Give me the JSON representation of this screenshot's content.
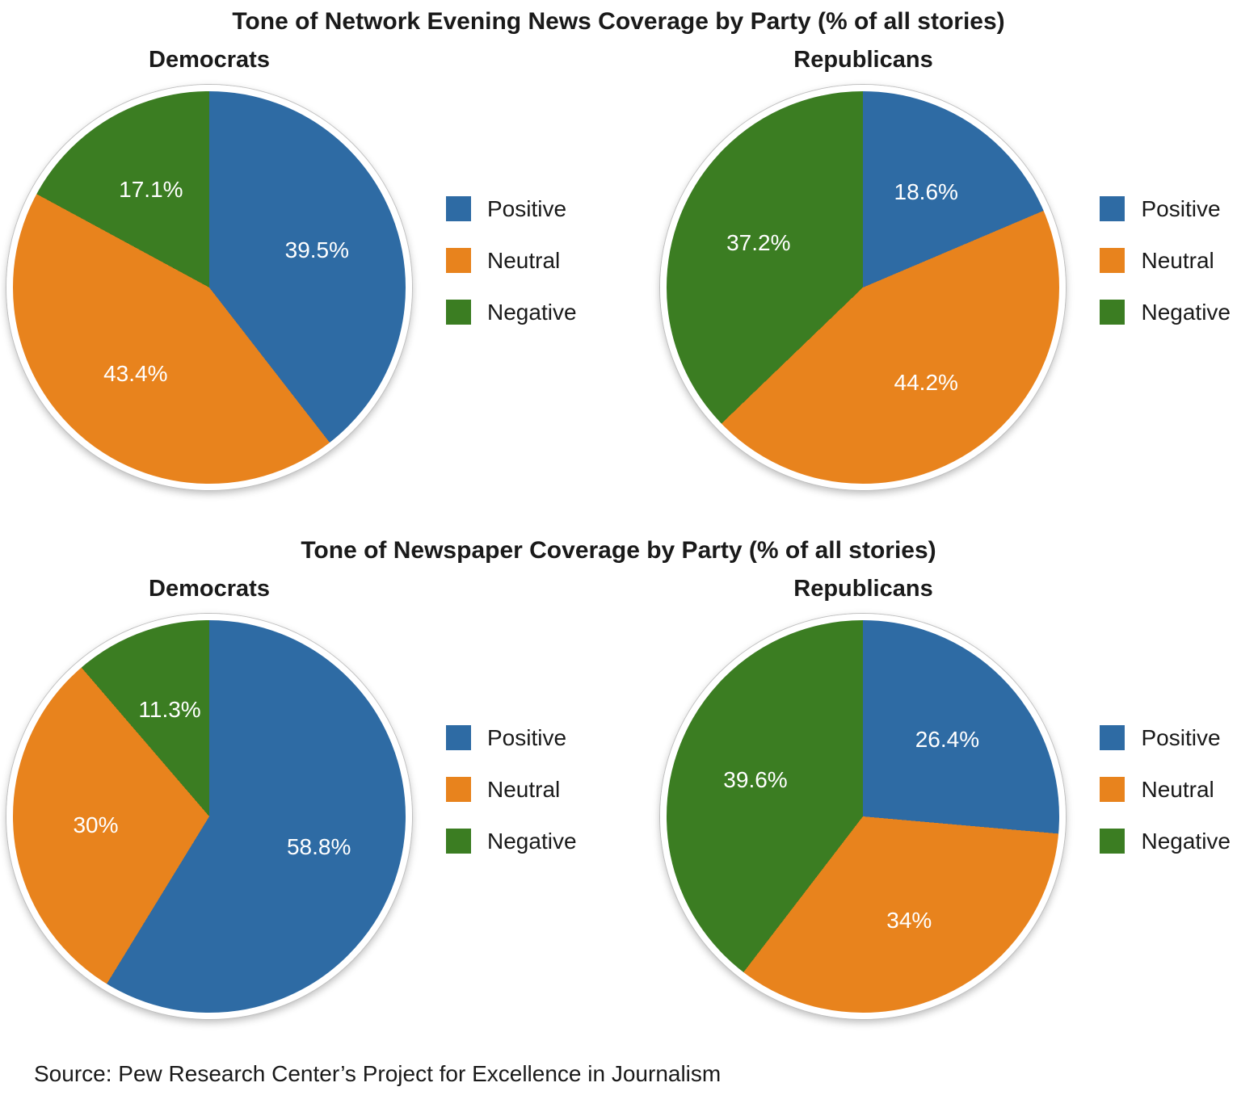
{
  "colors": {
    "positive": "#2E6BA4",
    "neutral": "#E8831D",
    "negative": "#3B7D22"
  },
  "legend": [
    "Positive",
    "Neutral",
    "Negative"
  ],
  "source": "Source: Pew Research Center’s Project for Excellence in Journalism",
  "chart_data": [
    {
      "type": "pie",
      "title": "Tone of Network Evening News Coverage by Party (% of all stories)",
      "legend_position": "right",
      "categories": [
        "Positive",
        "Neutral",
        "Negative"
      ],
      "charts": [
        {
          "title": "Democrats",
          "values": [
            39.5,
            43.4,
            17.1
          ],
          "display": [
            "39.5%",
            "43.4%",
            "17.1%"
          ]
        },
        {
          "title": "Republicans",
          "values": [
            18.6,
            44.2,
            37.2
          ],
          "display": [
            "18.6%",
            "44.2%",
            "37.2%"
          ]
        }
      ]
    },
    {
      "type": "pie",
      "title": "Tone of Newspaper Coverage by Party (% of all stories)",
      "legend_position": "right",
      "categories": [
        "Positive",
        "Neutral",
        "Negative"
      ],
      "charts": [
        {
          "title": "Democrats",
          "values": [
            58.8,
            30,
            11.3
          ],
          "display": [
            "58.8%",
            "30%",
            "11.3%"
          ]
        },
        {
          "title": "Republicans",
          "values": [
            26.4,
            34,
            39.6
          ],
          "display": [
            "26.4%",
            "34%",
            "39.6%"
          ]
        }
      ]
    }
  ]
}
